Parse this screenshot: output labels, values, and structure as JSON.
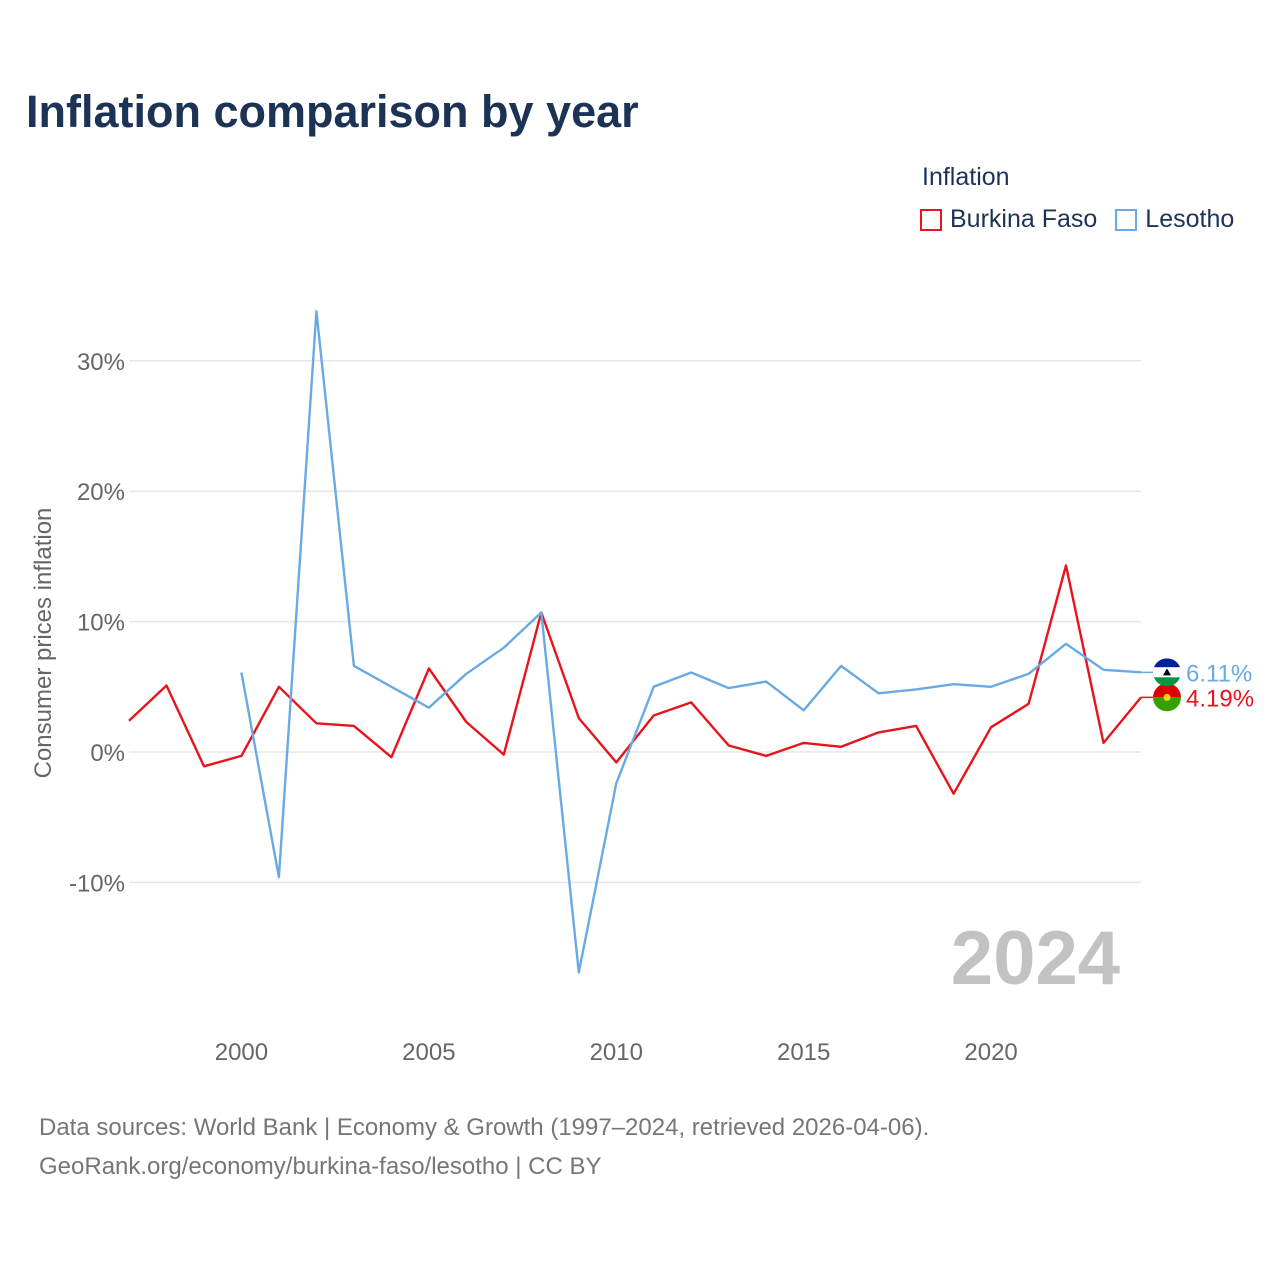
{
  "title": "Inflation comparison by year",
  "legend": {
    "title": "Inflation",
    "items": [
      {
        "label": "Burkina Faso",
        "color": "#e8141c"
      },
      {
        "label": "Lesotho",
        "color": "#6aaae4"
      }
    ]
  },
  "watermark_year": "2024",
  "source": {
    "line1": "Data sources: World Bank | Economy & Growth (1997–2024, retrieved 2026-04-06).",
    "line2": "GeoRank.org/economy/burkina-faso/lesotho | CC BY"
  },
  "chart_data": {
    "type": "line",
    "title": "Inflation comparison by year",
    "xlabel": "",
    "ylabel": "Consumer prices inflation",
    "xlim": [
      1997,
      2024
    ],
    "ylim": [
      -20,
      36
    ],
    "y_ticks": [
      -10,
      0,
      10,
      20,
      30
    ],
    "y_tick_labels": [
      "-10%",
      "0%",
      "10%",
      "20%",
      "30%"
    ],
    "x_ticks": [
      2000,
      2005,
      2010,
      2015,
      2020
    ],
    "x_tick_labels": [
      "2000",
      "2005",
      "2010",
      "2015",
      "2020"
    ],
    "grid": true,
    "legend_position": "top-right",
    "series": [
      {
        "name": "Burkina Faso",
        "color": "#e8141c",
        "flag_colors": [
          "#de0000",
          "#35a100",
          "#fcd116"
        ],
        "end_label": "4.19%",
        "x": [
          1997,
          1998,
          1999,
          2000,
          2001,
          2002,
          2003,
          2004,
          2005,
          2006,
          2007,
          2008,
          2009,
          2010,
          2011,
          2012,
          2013,
          2014,
          2015,
          2016,
          2017,
          2018,
          2019,
          2020,
          2021,
          2022,
          2023,
          2024
        ],
        "values": [
          2.4,
          5.1,
          -1.1,
          -0.3,
          5.0,
          2.2,
          2.0,
          -0.4,
          6.4,
          2.3,
          -0.2,
          10.7,
          2.6,
          -0.8,
          2.8,
          3.8,
          0.5,
          -0.3,
          0.7,
          0.4,
          1.5,
          2.0,
          -3.2,
          1.9,
          3.7,
          14.3,
          0.7,
          4.19
        ]
      },
      {
        "name": "Lesotho",
        "color": "#6aaae4",
        "flag_colors": [
          "#00209f",
          "#ffffff",
          "#009543"
        ],
        "end_label": "6.11%",
        "x": [
          2000,
          2001,
          2002,
          2003,
          2004,
          2005,
          2006,
          2007,
          2008,
          2009,
          2010,
          2011,
          2012,
          2013,
          2014,
          2015,
          2016,
          2017,
          2018,
          2019,
          2020,
          2021,
          2022,
          2023,
          2024
        ],
        "values": [
          6.1,
          -9.6,
          33.8,
          6.6,
          5.0,
          3.4,
          6.0,
          8.0,
          10.7,
          -16.9,
          -2.4,
          5.0,
          6.1,
          4.9,
          5.4,
          3.2,
          6.6,
          4.5,
          4.8,
          5.2,
          5.0,
          6.0,
          8.3,
          6.3,
          6.11
        ]
      }
    ]
  }
}
